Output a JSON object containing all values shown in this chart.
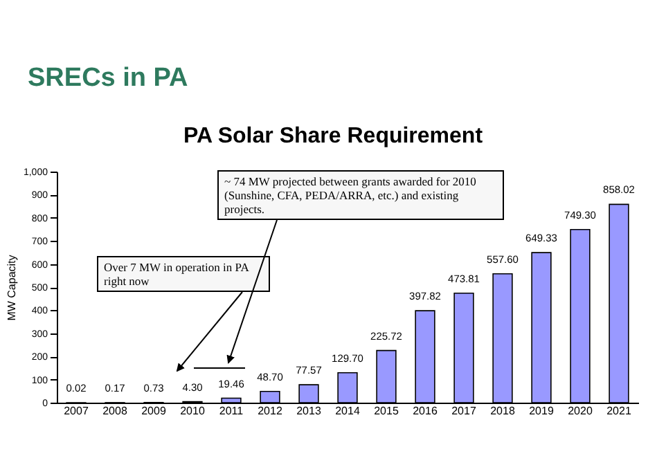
{
  "chart_data": {
    "type": "bar",
    "title": "SRECs in PA",
    "subtitle": "PA Solar Share Requirement",
    "ylabel": "MW Capacity",
    "categories": [
      "2007",
      "2008",
      "2009",
      "2010",
      "2011",
      "2012",
      "2013",
      "2014",
      "2015",
      "2016",
      "2017",
      "2018",
      "2019",
      "2020",
      "2021"
    ],
    "values": [
      0.02,
      0.17,
      0.73,
      4.3,
      19.46,
      48.7,
      77.57,
      129.7,
      225.72,
      397.82,
      473.81,
      557.6,
      649.33,
      749.3,
      858.02
    ],
    "value_labels": [
      "0.02",
      "0.17",
      "0.73",
      "4.30",
      "19.46",
      "48.70",
      "77.57",
      "129.70",
      "225.72",
      "397.82",
      "473.81",
      "557.60",
      "649.33",
      "749.30",
      "858.02"
    ],
    "color": "#9999ff",
    "ylim": [
      0,
      1000
    ],
    "yticks": [
      0,
      100,
      200,
      300,
      400,
      500,
      600,
      700,
      800,
      900,
      {
        "value": 1000,
        "label": "1,000"
      }
    ],
    "grid": false,
    "annotations": [
      "Over  7 MW in operation in PA right now",
      "~ 74 MW projected  between grants awarded for 2010 (Sunshine,  CFA, PEDA/ARRA, etc.) and existing projects."
    ]
  }
}
